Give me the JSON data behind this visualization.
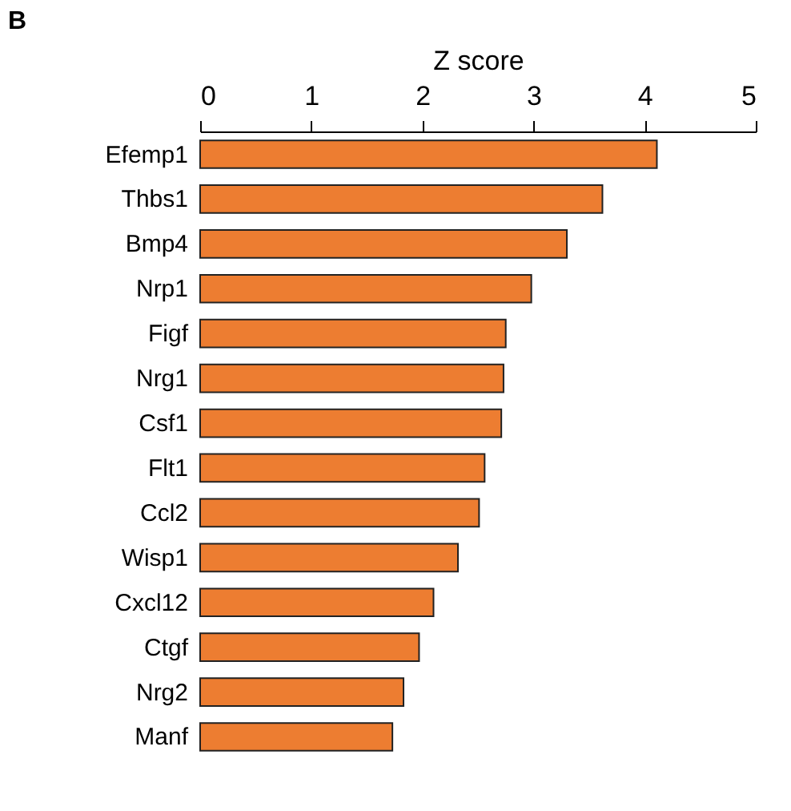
{
  "chart_data": {
    "type": "bar",
    "orientation": "horizontal",
    "title": "B",
    "xlabel": "Z score",
    "categories": [
      "Efemp1",
      "Thbs1",
      "Bmp4",
      "Nrp1",
      "Figf",
      "Nrg1",
      "Csf1",
      "Flt1",
      "Ccl2",
      "Wisp1",
      "Cxcl12",
      "Ctgf",
      "Nrg2",
      "Manf"
    ],
    "values": [
      4.11,
      3.62,
      3.3,
      2.98,
      2.75,
      2.73,
      2.71,
      2.56,
      2.51,
      2.32,
      2.1,
      1.97,
      1.83,
      1.73
    ],
    "color": "#ed7d31",
    "xlim": [
      0,
      5
    ],
    "xticks": [
      0,
      1,
      2,
      3,
      4,
      5
    ],
    "grid": false
  }
}
